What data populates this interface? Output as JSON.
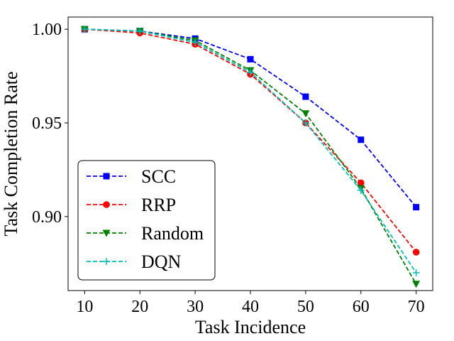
{
  "chart_data": {
    "type": "line",
    "title": "",
    "xlabel": "Task Incidence",
    "ylabel": "Task Completion Rate",
    "x": [
      10,
      20,
      30,
      40,
      50,
      60,
      70
    ],
    "xlim": [
      7,
      73
    ],
    "ylim": [
      0.8605,
      1.0065
    ],
    "xticks": [
      10,
      20,
      30,
      40,
      50,
      60,
      70
    ],
    "yticks": [
      0.9,
      0.95,
      1.0
    ],
    "ytick_labels": [
      "0.90",
      "0.95",
      "1.00"
    ],
    "grid": false,
    "legend_position": "lower-left",
    "series": [
      {
        "name": "SCC",
        "color": "#0000ff",
        "marker": "square",
        "values": [
          1.0,
          0.999,
          0.995,
          0.984,
          0.964,
          0.941,
          0.905
        ]
      },
      {
        "name": "RRP",
        "color": "#ff0000",
        "marker": "circle",
        "values": [
          1.0,
          0.998,
          0.992,
          0.976,
          0.95,
          0.918,
          0.881
        ]
      },
      {
        "name": "Random",
        "color": "#008000",
        "marker": "triangle-down",
        "values": [
          1.0,
          0.999,
          0.994,
          0.978,
          0.955,
          0.915,
          0.864
        ]
      },
      {
        "name": "DQN",
        "color": "#00bfbf",
        "marker": "plus",
        "values": [
          1.0,
          0.999,
          0.993,
          0.977,
          0.95,
          0.914,
          0.87
        ]
      }
    ]
  }
}
